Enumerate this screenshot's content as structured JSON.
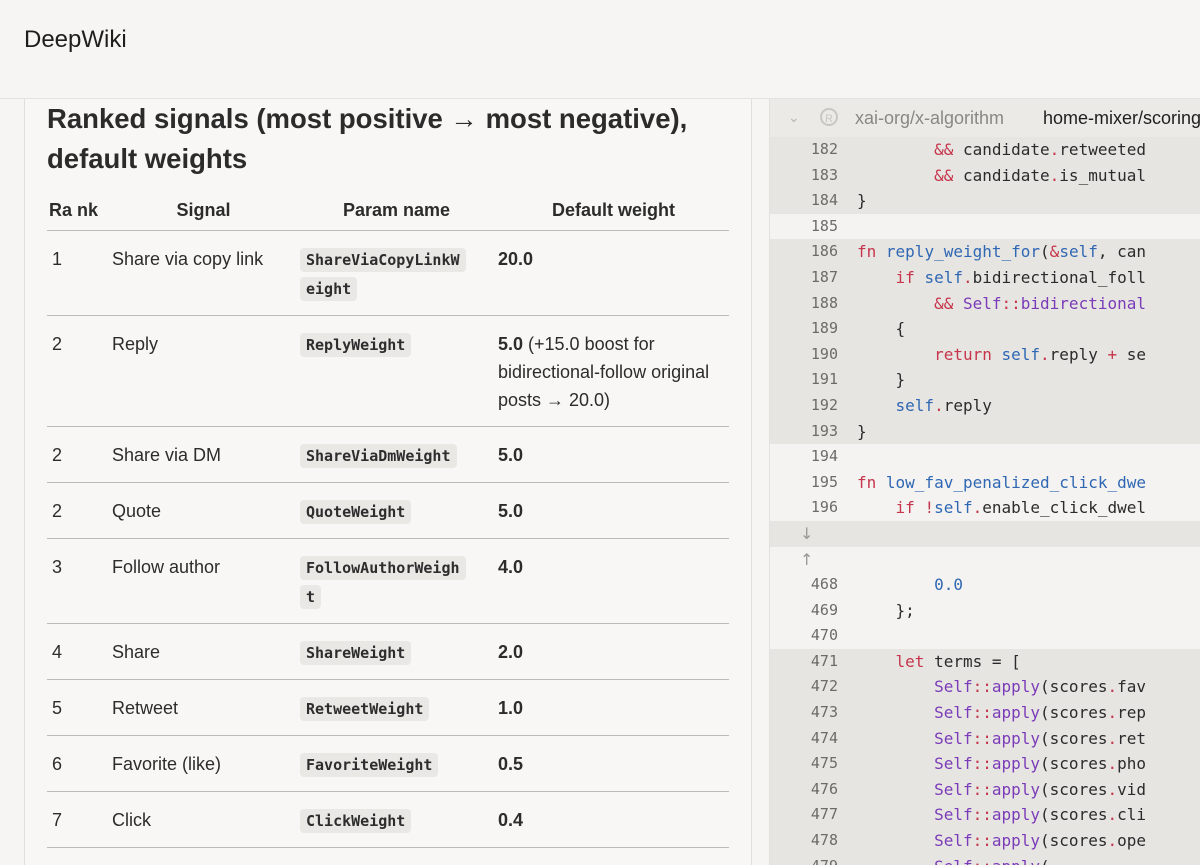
{
  "app": {
    "brand": "DeepWiki"
  },
  "article": {
    "title": "Ranked signals (most positive → most negative), default weights",
    "table": {
      "headers": {
        "rank": "Ra nk",
        "signal": "Signal",
        "param": "Param name",
        "weight": "Default weight"
      },
      "rows": [
        {
          "rank": "1",
          "signal": "Share via copy link",
          "param": "ShareViaCopyLinkWeight",
          "weight": "20.0",
          "note": ""
        },
        {
          "rank": "2",
          "signal": "Reply",
          "param": "ReplyWeight",
          "weight": "5.0",
          "note": " (+15.0 boost for bidirectional-follow original posts → 20.0)"
        },
        {
          "rank": "2",
          "signal": "Share via DM",
          "param": "ShareViaDmWeight",
          "weight": "5.0",
          "note": ""
        },
        {
          "rank": "2",
          "signal": "Quote",
          "param": "QuoteWeight",
          "weight": "5.0",
          "note": ""
        },
        {
          "rank": "3",
          "signal": "Follow author",
          "param": "FollowAuthorWeight",
          "weight": "4.0",
          "note": ""
        },
        {
          "rank": "4",
          "signal": "Share",
          "param": "ShareWeight",
          "weight": "2.0",
          "note": ""
        },
        {
          "rank": "5",
          "signal": "Retweet",
          "param": "RetweetWeight",
          "weight": "1.0",
          "note": ""
        },
        {
          "rank": "6",
          "signal": "Favorite (like)",
          "param": "FavoriteWeight",
          "weight": "0.5",
          "note": ""
        },
        {
          "rank": "7",
          "signal": "Click",
          "param": "ClickWeight",
          "weight": "0.4",
          "note": ""
        }
      ]
    }
  },
  "code_viewer": {
    "repo": "xai-org/x-algorithm",
    "path": "home-mixer/scoring",
    "icons": {
      "collapse": "chevron-down-icon",
      "repo_logo": "github-logo-icon",
      "expand_down": "arrow-down-icon",
      "expand_up": "arrow-up-icon"
    },
    "lines": [
      {
        "n": "182",
        "hl": true,
        "code": "        && candidate.retweeted"
      },
      {
        "n": "183",
        "hl": true,
        "code": "        && candidate.is_mutual"
      },
      {
        "n": "184",
        "hl": true,
        "code": "}"
      },
      {
        "n": "185",
        "hl": false,
        "code": ""
      },
      {
        "n": "186",
        "hl": true,
        "code": "fn reply_weight_for(&self, can"
      },
      {
        "n": "187",
        "hl": true,
        "code": "    if self.bidirectional_foll"
      },
      {
        "n": "188",
        "hl": true,
        "code": "        && Self::bidirectional"
      },
      {
        "n": "189",
        "hl": true,
        "code": "    {"
      },
      {
        "n": "190",
        "hl": true,
        "code": "        return self.reply + se"
      },
      {
        "n": "191",
        "hl": true,
        "code": "    }"
      },
      {
        "n": "192",
        "hl": true,
        "code": "    self.reply"
      },
      {
        "n": "193",
        "hl": true,
        "code": "}"
      },
      {
        "n": "194",
        "hl": false,
        "code": ""
      },
      {
        "n": "195",
        "hl": false,
        "code": "fn low_fav_penalized_click_dwe"
      },
      {
        "n": "196",
        "hl": false,
        "code": "    if !self.enable_click_dwel"
      },
      {
        "n": "↓",
        "hl": true,
        "code": "",
        "arrow": true
      },
      {
        "n": "↑",
        "hl": false,
        "code": "",
        "arrow": true
      },
      {
        "n": "468",
        "hl": false,
        "code": "        0.0"
      },
      {
        "n": "469",
        "hl": false,
        "code": "    };"
      },
      {
        "n": "470",
        "hl": false,
        "code": ""
      },
      {
        "n": "471",
        "hl": true,
        "code": "    let terms = ["
      },
      {
        "n": "472",
        "hl": true,
        "code": "        Self::apply(scores.fav"
      },
      {
        "n": "473",
        "hl": true,
        "code": "        Self::apply(scores.rep"
      },
      {
        "n": "474",
        "hl": true,
        "code": "        Self::apply(scores.ret"
      },
      {
        "n": "475",
        "hl": true,
        "code": "        Self::apply(scores.pho"
      },
      {
        "n": "476",
        "hl": true,
        "code": "        Self::apply(scores.vid"
      },
      {
        "n": "477",
        "hl": true,
        "code": "        Self::apply(scores.cli"
      },
      {
        "n": "478",
        "hl": true,
        "code": "        Self::apply(scores.ope"
      },
      {
        "n": "479",
        "hl": true,
        "code": "        Self::apply("
      }
    ]
  }
}
